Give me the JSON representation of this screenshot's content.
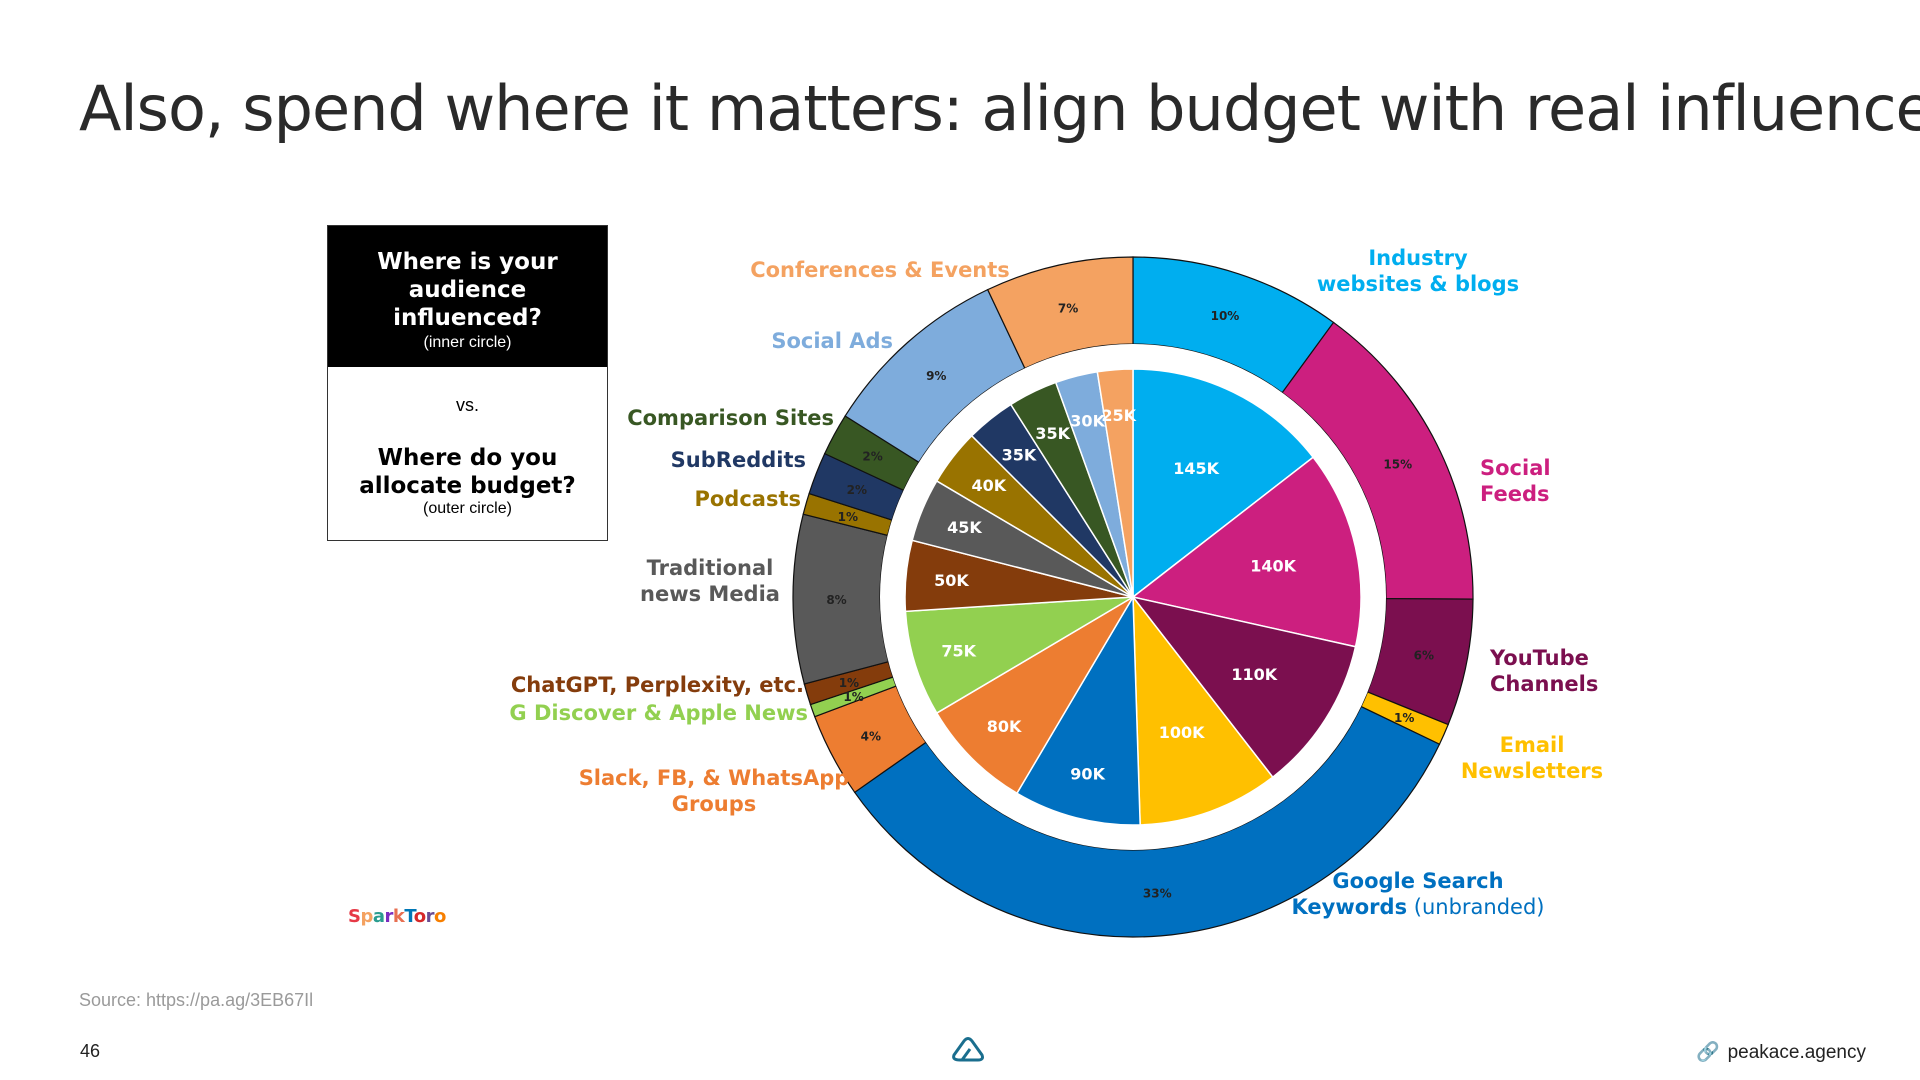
{
  "title": "Also, spend where it matters: align budget with real influence",
  "legend": {
    "q1": "Where is your audience influenced?",
    "q1_sub": "(inner circle)",
    "vs": "vs.",
    "q2": "Where do you allocate budget?",
    "q2_sub": "(outer circle)"
  },
  "logo_text": "SparkToro",
  "source": "Source: https://pa.ag/3EB67Il",
  "page_number": "46",
  "footer_link": "peakace.agency",
  "chart_data": {
    "type": "pie",
    "inner": {
      "unit": "audience influenced",
      "slices": [
        {
          "label": "145K",
          "value": 145,
          "channel": "Industry websites & blogs",
          "color": "#00AEEF"
        },
        {
          "label": "140K",
          "value": 140,
          "channel": "Social Feeds",
          "color": "#CC1F7F"
        },
        {
          "label": "110K",
          "value": 110,
          "channel": "YouTube Channels",
          "color": "#7B0F4F"
        },
        {
          "label": "100K",
          "value": 100,
          "channel": "Email Newsletters",
          "color": "#FFC000"
        },
        {
          "label": "90K",
          "value": 90,
          "channel": "Google Search Keywords",
          "color": "#0070C0"
        },
        {
          "label": "80K",
          "value": 80,
          "channel": "Slack, FB, & WhatsApp Groups",
          "color": "#ED7D31"
        },
        {
          "label": "75K",
          "value": 75,
          "channel": "G Discover & Apple News",
          "color": "#92D050"
        },
        {
          "label": "50K",
          "value": 50,
          "channel": "ChatGPT, Perplexity, etc.",
          "color": "#843C0C"
        },
        {
          "label": "45K",
          "value": 45,
          "channel": "Traditional news Media",
          "color": "#595959"
        },
        {
          "label": "40K",
          "value": 40,
          "channel": "Podcasts",
          "color": "#997300"
        },
        {
          "label": "35K",
          "value": 35,
          "channel": "SubReddits",
          "color": "#203864"
        },
        {
          "label": "35K",
          "value": 35,
          "channel": "Comparison Sites",
          "color": "#385723"
        },
        {
          "label": "30K",
          "value": 30,
          "channel": "Social Ads",
          "color": "#7EACDC"
        },
        {
          "label": "25K",
          "value": 25,
          "channel": "Conferences & Events",
          "color": "#F4A261"
        }
      ]
    },
    "outer": {
      "unit": "budget allocation",
      "slices": [
        {
          "label": "10%",
          "value": 10,
          "channel": "Industry websites & blogs",
          "color": "#00AEEF"
        },
        {
          "label": "15%",
          "value": 15,
          "channel": "Social Feeds",
          "color": "#CC1F7F"
        },
        {
          "label": "6%",
          "value": 6,
          "channel": "YouTube Channels",
          "color": "#7B0F4F"
        },
        {
          "label": "1%",
          "value": 1,
          "channel": "Email Newsletters",
          "color": "#FFC000"
        },
        {
          "label": "33%",
          "value": 33,
          "channel": "Google Search Keywords",
          "color": "#0070C0"
        },
        {
          "label": "4%",
          "value": 4,
          "channel": "Slack, FB, & WhatsApp Groups",
          "color": "#ED7D31"
        },
        {
          "label": "1%",
          "value": 0.6,
          "channel": "G Discover & Apple News",
          "color": "#92D050"
        },
        {
          "label": "1%",
          "value": 1,
          "channel": "ChatGPT, Perplexity, etc.",
          "color": "#843C0C"
        },
        {
          "label": "8%",
          "value": 8,
          "channel": "Traditional news Media",
          "color": "#595959"
        },
        {
          "label": "1%",
          "value": 1,
          "channel": "Podcasts",
          "color": "#997300"
        },
        {
          "label": "2%",
          "value": 2,
          "channel": "SubReddits",
          "color": "#203864"
        },
        {
          "label": "2%",
          "value": 2,
          "channel": "Comparison Sites",
          "color": "#385723"
        },
        {
          "label": "9%",
          "value": 9,
          "channel": "Social Ads",
          "color": "#7EACDC"
        },
        {
          "label": "7%",
          "value": 7,
          "channel": "Conferences & Events",
          "color": "#F4A261"
        }
      ]
    },
    "category_labels": [
      {
        "lines": [
          "Industry",
          "websites & blogs"
        ],
        "color": "#00AEEF"
      },
      {
        "lines": [
          "Social",
          "Feeds"
        ],
        "color": "#CC1F7F"
      },
      {
        "lines": [
          "YouTube",
          "Channels"
        ],
        "color": "#7B0F4F"
      },
      {
        "lines": [
          "Email",
          "Newsletters"
        ],
        "color": "#FFC000"
      },
      {
        "lines": [
          "Google Search",
          "Keywords"
        ],
        "suffix": "(unbranded)",
        "color": "#0070C0"
      },
      {
        "lines": [
          "Slack, FB, & WhatsApp",
          "Groups"
        ],
        "color": "#ED7D31"
      },
      {
        "lines": [
          "G Discover & Apple News"
        ],
        "color": "#92D050"
      },
      {
        "lines": [
          "ChatGPT, Perplexity, etc."
        ],
        "color": "#843C0C"
      },
      {
        "lines": [
          "Traditional",
          "news Media"
        ],
        "color": "#595959"
      },
      {
        "lines": [
          "Podcasts"
        ],
        "color": "#997300"
      },
      {
        "lines": [
          "SubReddits"
        ],
        "color": "#203864"
      },
      {
        "lines": [
          "Comparison Sites"
        ],
        "color": "#385723"
      },
      {
        "lines": [
          "Social Ads"
        ],
        "color": "#7EACDC"
      },
      {
        "lines": [
          "Conferences & Events"
        ],
        "color": "#F4A261"
      }
    ]
  }
}
